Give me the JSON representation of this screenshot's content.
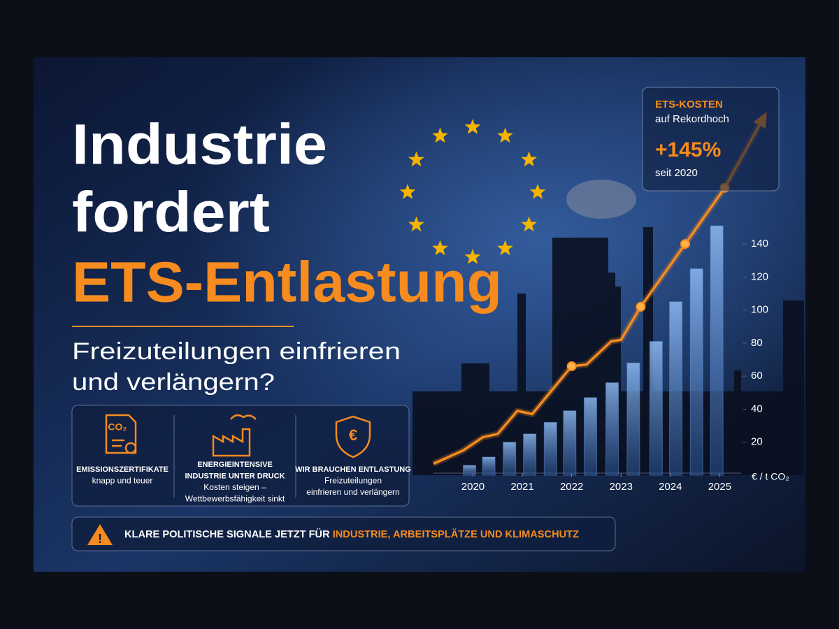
{
  "header": {
    "title_lines": [
      "Industrie",
      "fordert"
    ],
    "title_highlight": "ETS-Entlastung",
    "subtitle_lines": [
      "Freizuteilungen einfrieren",
      "und verlängern?"
    ]
  },
  "features": [
    {
      "icon_text": "CO₂",
      "title_lines": [
        "EMISSIONSZERTIFIKATE"
      ],
      "text_lines": [
        "knapp und teuer"
      ]
    },
    {
      "title_lines": [
        "ENERGIEINTENSIVE",
        "INDUSTRIE UNTER DRUCK"
      ],
      "text_lines": [
        "Kosten steigen –",
        "Wettbewerbsfähigkeit sinkt"
      ]
    },
    {
      "icon_text": "€",
      "title_lines": [
        "WIR BRAUCHEN ENTLASTUNG"
      ],
      "text_lines": [
        "Freizuteilungen",
        "einfrieren und verlängern"
      ]
    }
  ],
  "banner": {
    "text": "KLARE POLITISCHE SIGNALE JETZT FÜR ",
    "highlight": "INDUSTRIE, ARBEITSPLÄTZE UND KLIMASCHUTZ"
  },
  "callout": {
    "title": "ETS-KOSTEN",
    "subtitle": "auf Rekordhoch",
    "value": "+145%",
    "note": "seit 2020"
  },
  "chart_data": {
    "type": "bar-line",
    "unit_label": "€ / t CO₂",
    "xlim": [
      2019.2,
      2026
    ],
    "xticks": [
      2020,
      2021,
      2022,
      2023,
      2024,
      2025
    ],
    "ylim": [
      0,
      220
    ],
    "yticks": [
      20,
      40,
      60,
      80,
      100,
      120,
      140
    ],
    "bars": {
      "color": "#5b8fd8",
      "x": [
        2019.93,
        2020.32,
        2020.74,
        2021.15,
        2021.57,
        2021.96,
        2022.38,
        2022.82,
        2023.25,
        2023.71,
        2024.11,
        2024.53,
        2024.94
      ],
      "values": [
        6,
        11,
        20,
        25,
        32,
        39,
        47,
        56,
        68,
        81,
        105,
        125,
        151
      ]
    },
    "line": {
      "color": "#f68b1f",
      "x": [
        2019.2,
        2019.8,
        2020.2,
        2020.5,
        2020.9,
        2021.2,
        2022,
        2022.3,
        2022.8,
        2023,
        2023.4,
        2024.3,
        2025.1,
        2025.9
      ],
      "values": [
        7,
        15,
        23,
        25,
        39,
        37,
        66,
        67,
        81,
        82,
        102,
        140,
        174,
        217
      ],
      "markers": [
        6,
        10,
        11,
        12
      ]
    }
  }
}
